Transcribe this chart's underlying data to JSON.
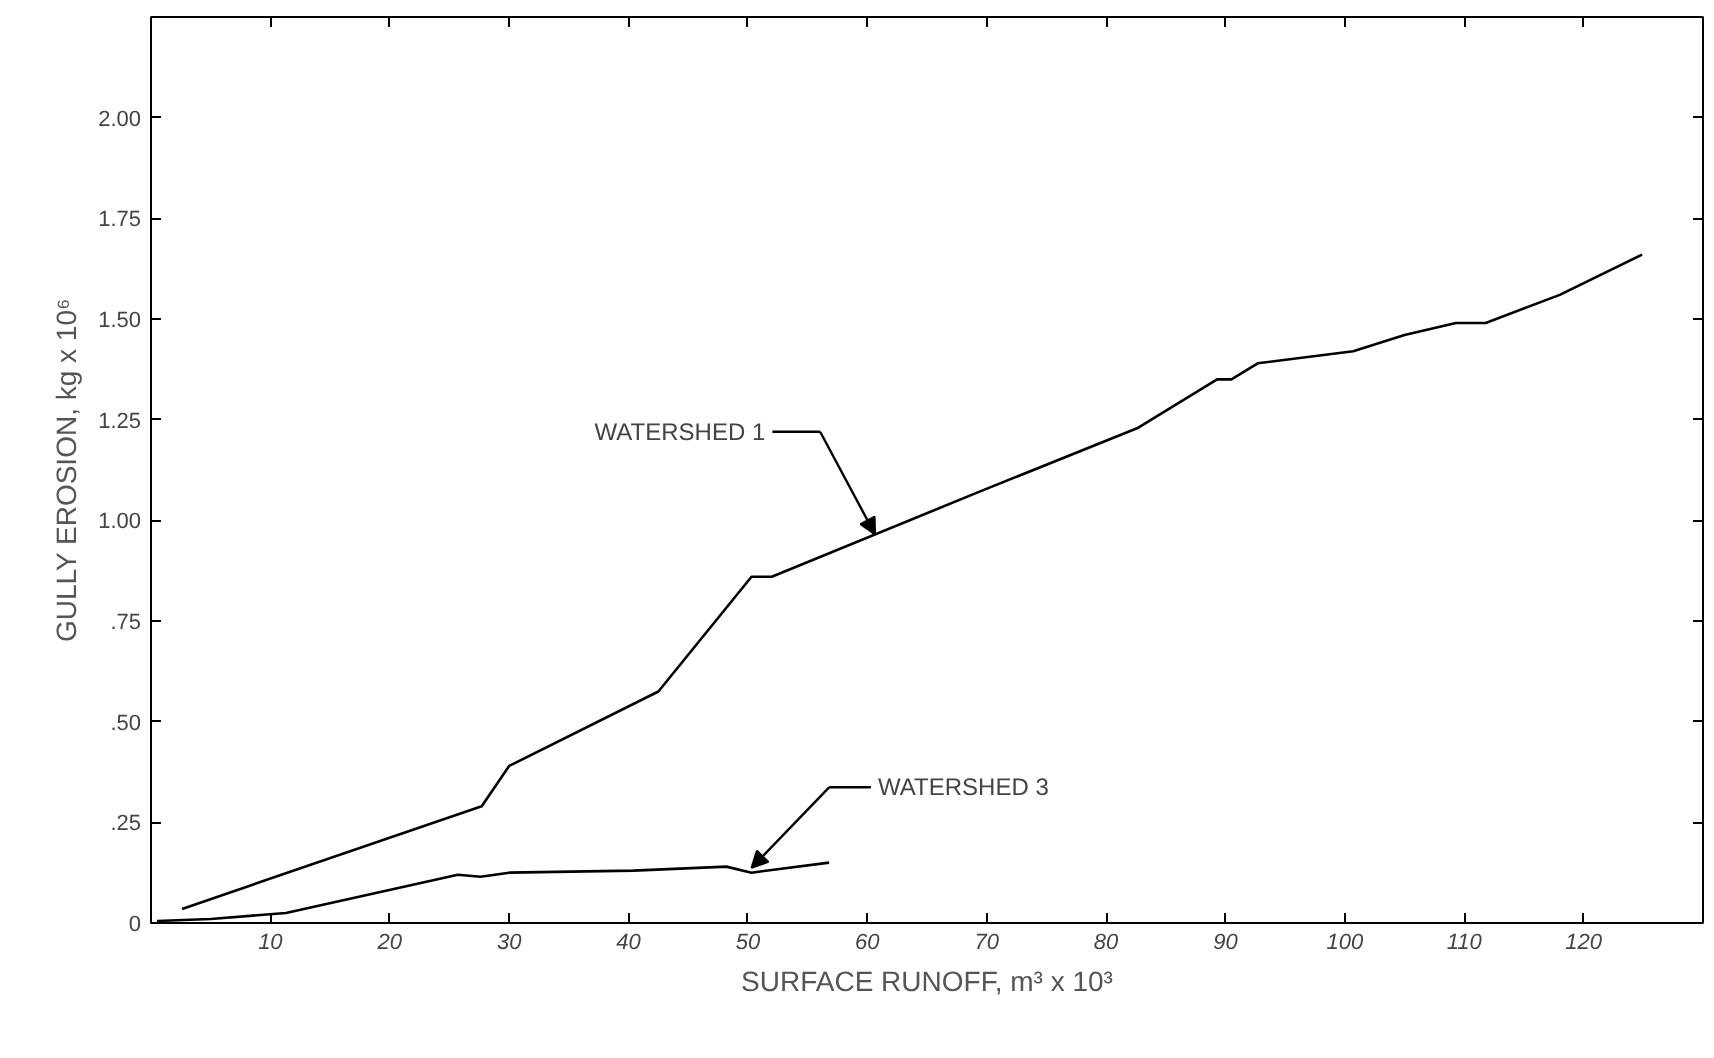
{
  "chart_data": {
    "type": "line",
    "xlabel": "SURFACE RUNOFF, m³ x 10³",
    "ylabel": "GULLY EROSION, kg x 10⁶",
    "xlim": [
      0,
      130
    ],
    "ylim": [
      0,
      2.25
    ],
    "xticks": [
      10,
      20,
      30,
      40,
      50,
      60,
      70,
      80,
      90,
      100,
      110,
      120
    ],
    "yticks": [
      0,
      {
        "value": 0.25,
        "label": ".25"
      },
      {
        "value": 0.5,
        "label": ".50"
      },
      {
        "value": 0.75,
        "label": ".75"
      },
      {
        "value": 1.0,
        "label": "1.00"
      },
      {
        "value": 1.25,
        "label": "1.25"
      },
      {
        "value": 1.5,
        "label": "1.50"
      },
      {
        "value": 1.75,
        "label": "1.75"
      },
      {
        "value": 2.0,
        "label": "2.00"
      }
    ],
    "grid": false,
    "annotations": [
      "WATERSHED 1",
      "WATERSHED 3"
    ],
    "series": [
      {
        "color": "#000000",
        "x": [
          2.6,
          27.7,
          30,
          42.5,
          50.3,
          52,
          69.3,
          82.7,
          89.3,
          90.5,
          92.7,
          100.7,
          105,
          109.3,
          111.8,
          118,
          124.9
        ],
        "values": [
          0.035,
          0.29,
          0.39,
          0.575,
          0.86,
          0.86,
          1.07,
          1.23,
          1.35,
          1.35,
          1.39,
          1.42,
          1.46,
          1.49,
          1.49,
          1.56,
          1.66
        ]
      },
      {
        "color": "#000000",
        "x": [
          0.5,
          5,
          11.3,
          25.7,
          27.6,
          30,
          40.4,
          48.2,
          50.3,
          56.8
        ],
        "values": [
          0.005,
          0.01,
          0.025,
          0.12,
          0.115,
          0.125,
          0.13,
          0.14,
          0.125,
          0.15
        ]
      }
    ]
  }
}
